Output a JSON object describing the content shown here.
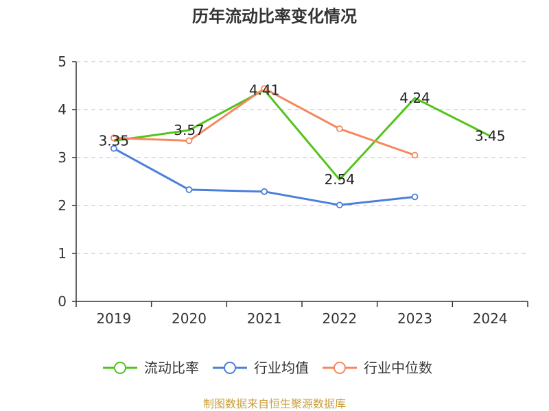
{
  "chart_data": {
    "type": "line",
    "title": "历年流动比率变化情况",
    "categories": [
      "2019",
      "2020",
      "2021",
      "2022",
      "2023",
      "2024"
    ],
    "ylim": [
      0,
      5
    ],
    "yticks": [
      0,
      1,
      2,
      3,
      4,
      5
    ],
    "grid": true,
    "legend_position": "bottom",
    "series": [
      {
        "name": "流动比率",
        "color": "#52c41a",
        "values": [
          3.35,
          3.57,
          4.41,
          2.54,
          4.24,
          3.45
        ],
        "data_labels": [
          "3.35",
          "3.57",
          "4.41",
          "2.54",
          "4.24",
          "3.45"
        ]
      },
      {
        "name": "行业均值",
        "color": "#4a7fdb",
        "values": [
          3.19,
          2.33,
          2.29,
          2.01,
          2.18,
          null
        ]
      },
      {
        "name": "行业中位数",
        "color": "#f4895f",
        "values": [
          3.41,
          3.35,
          4.44,
          3.6,
          3.05,
          null
        ]
      }
    ]
  },
  "source_text": "制图数据来自恒生聚源数据库",
  "source_color": "#c8a040"
}
